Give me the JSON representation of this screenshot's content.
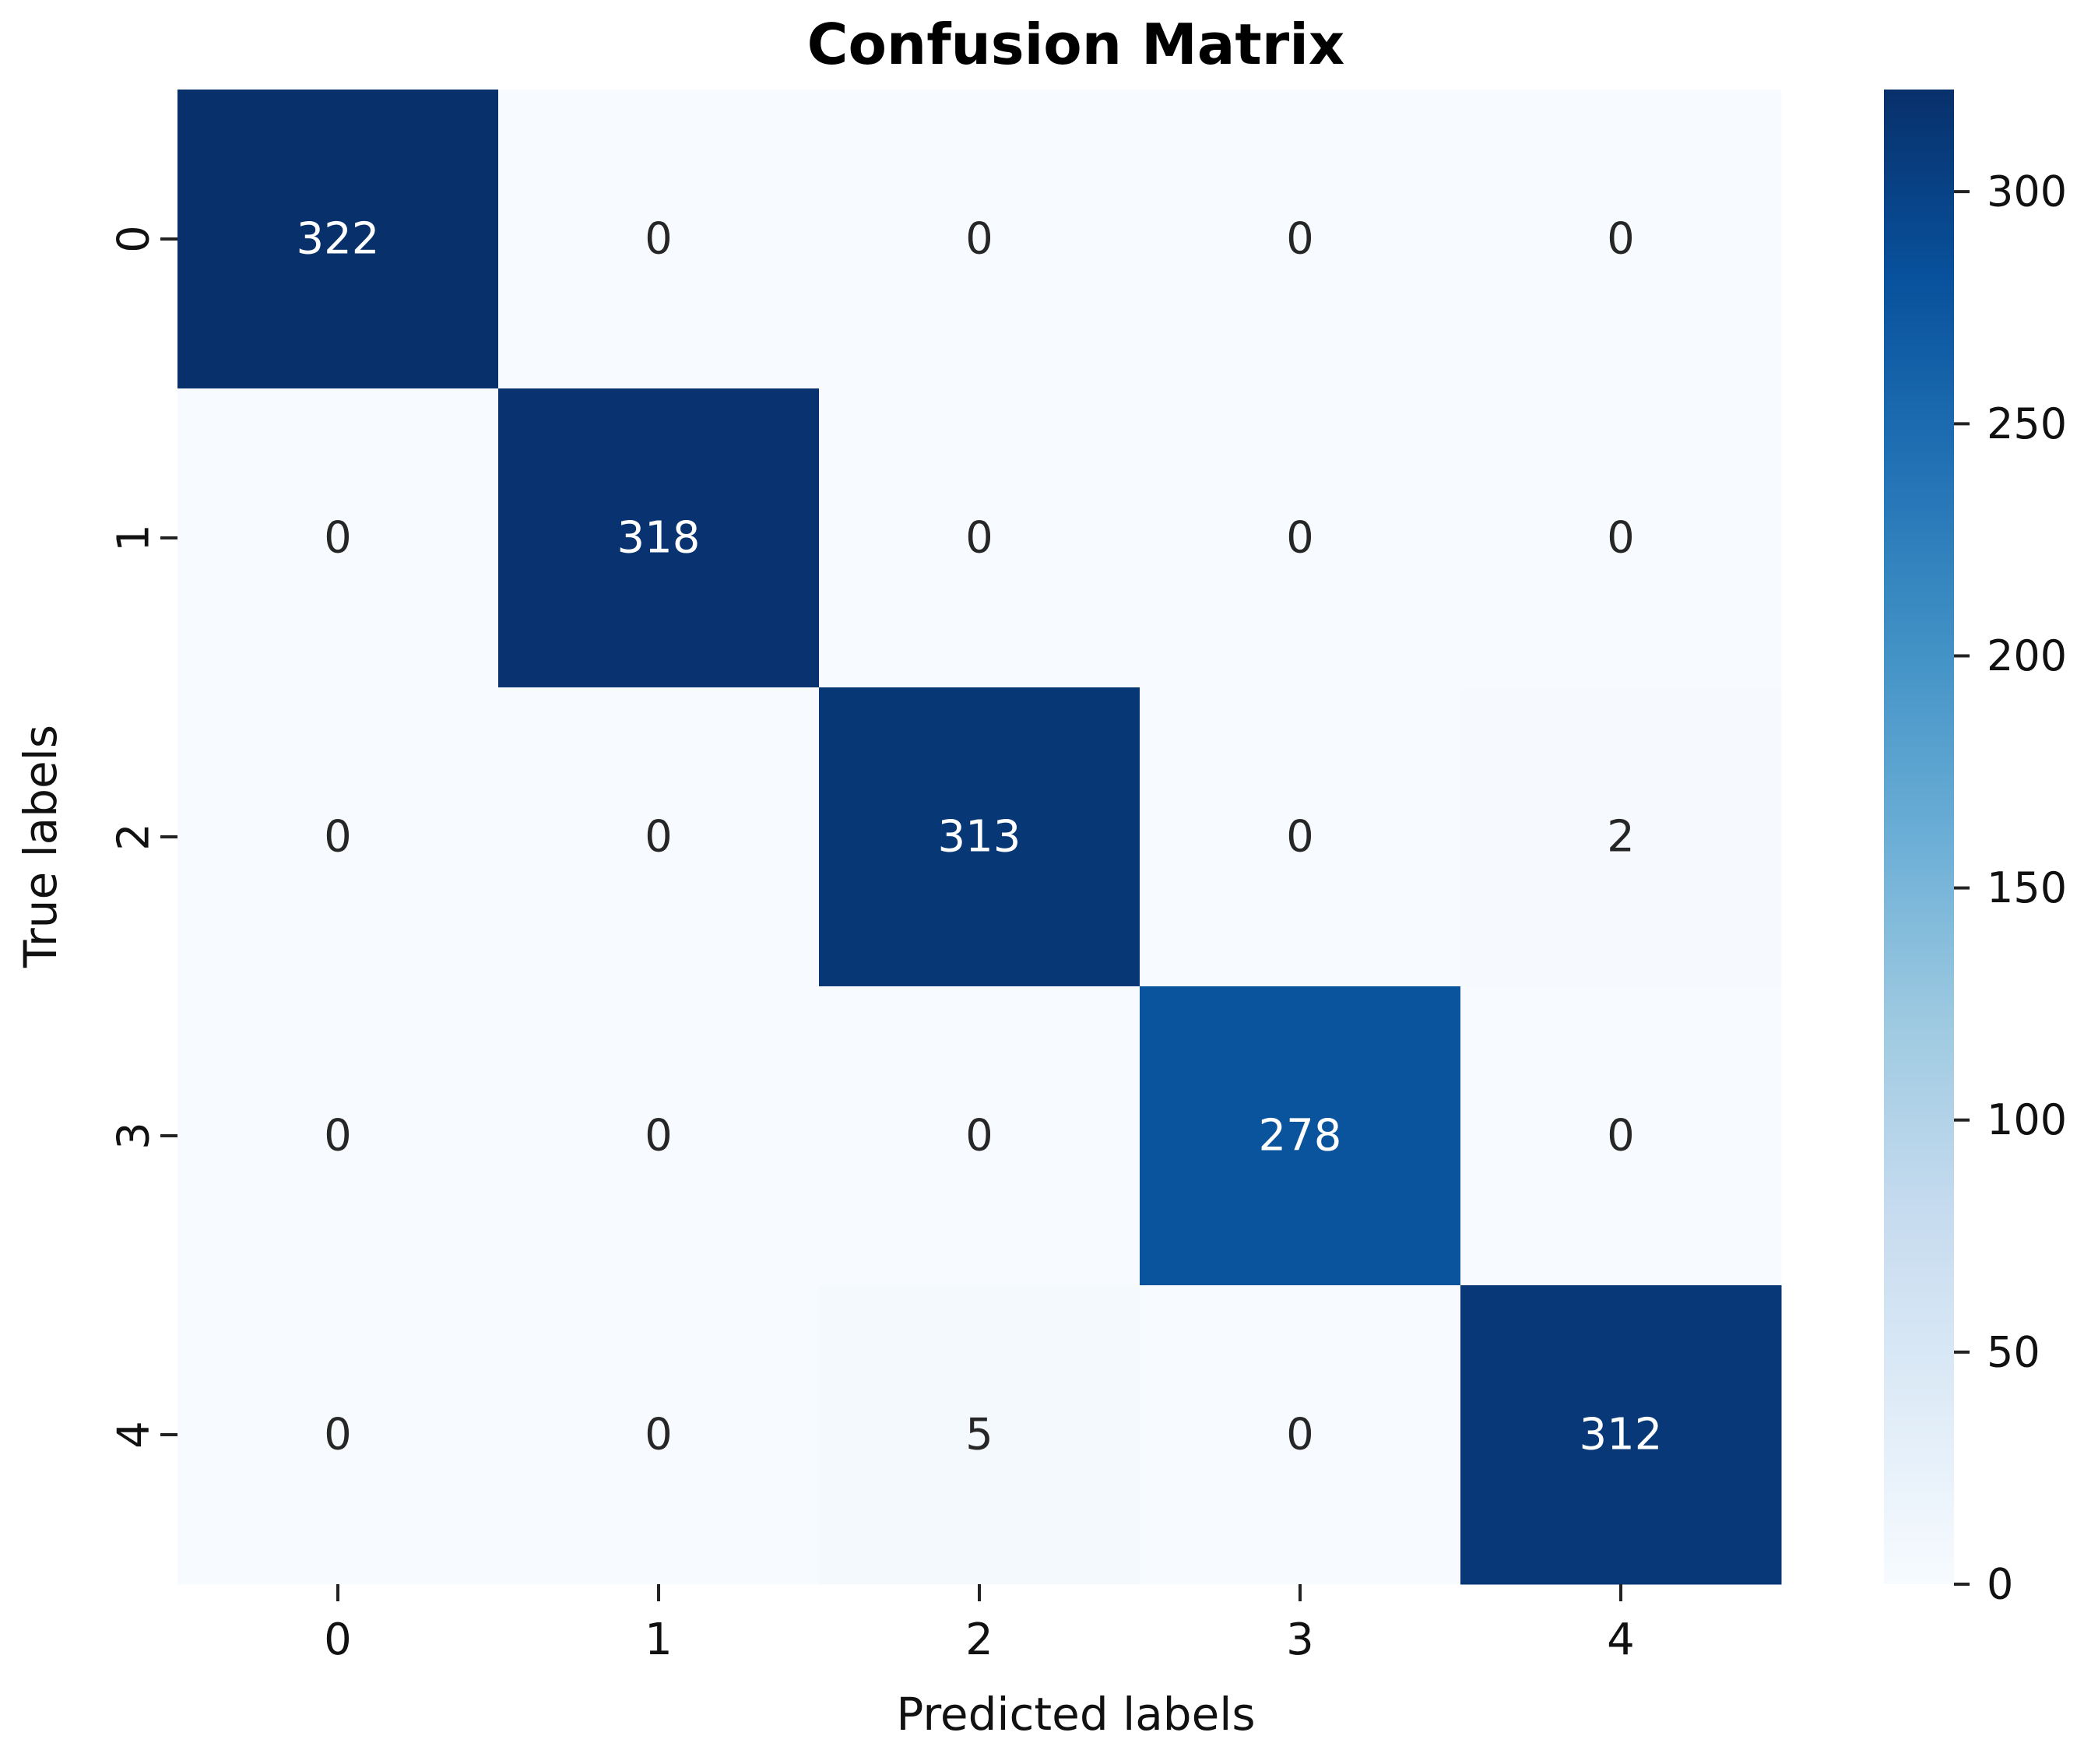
{
  "chart_data": {
    "type": "heatmap",
    "title": "Confusion Matrix",
    "xlabel": "Predicted labels",
    "ylabel": "True labels",
    "x_categories": [
      "0",
      "1",
      "2",
      "3",
      "4"
    ],
    "y_categories": [
      "0",
      "1",
      "2",
      "3",
      "4"
    ],
    "values": [
      [
        322,
        0,
        0,
        0,
        0
      ],
      [
        0,
        318,
        0,
        0,
        0
      ],
      [
        0,
        0,
        313,
        0,
        2
      ],
      [
        0,
        0,
        0,
        278,
        0
      ],
      [
        0,
        0,
        5,
        0,
        312
      ]
    ],
    "colormap": "Blues",
    "colors": {
      "low": "#f7fbff",
      "high": "#08306b"
    },
    "colorbar": {
      "min": 0,
      "max": 322,
      "ticks": [
        0,
        50,
        100,
        150,
        200,
        250,
        300
      ]
    }
  }
}
